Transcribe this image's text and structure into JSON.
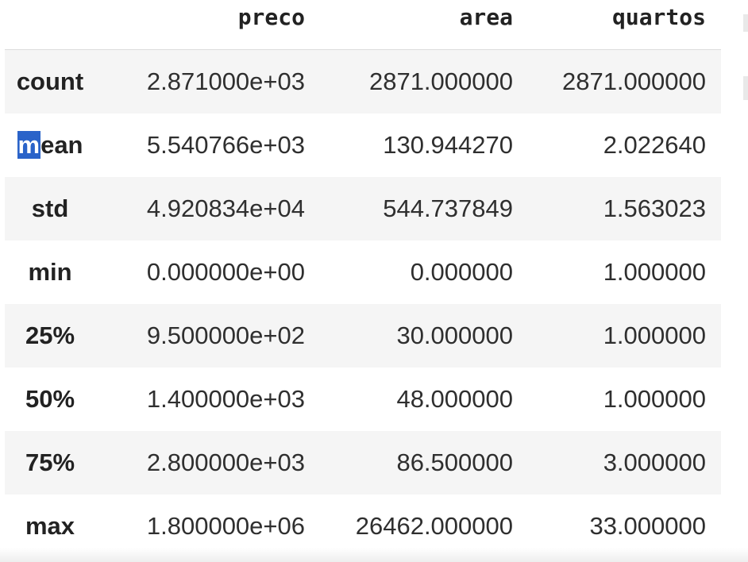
{
  "table": {
    "columns": [
      "preco",
      "area",
      "quartos"
    ],
    "rows": [
      {
        "label": "count",
        "preco": "2.871000e+03",
        "area": "2871.000000",
        "quartos": "2871.000000"
      },
      {
        "label": "mean",
        "preco": "5.540766e+03",
        "area": "130.944270",
        "quartos": "2.022640"
      },
      {
        "label": "std",
        "preco": "4.920834e+04",
        "area": "544.737849",
        "quartos": "1.563023"
      },
      {
        "label": "min",
        "preco": "0.000000e+00",
        "area": "0.000000",
        "quartos": "1.000000"
      },
      {
        "label": "25%",
        "preco": "9.500000e+02",
        "area": "30.000000",
        "quartos": "1.000000"
      },
      {
        "label": "50%",
        "preco": "1.400000e+03",
        "area": "48.000000",
        "quartos": "1.000000"
      },
      {
        "label": "75%",
        "preco": "2.800000e+03",
        "area": "86.500000",
        "quartos": "3.000000"
      },
      {
        "label": "max",
        "preco": "1.800000e+06",
        "area": "26462.000000",
        "quartos": "33.000000"
      }
    ],
    "selection": {
      "row_label": "mean",
      "selected_text": "m",
      "rest_text": "ean"
    }
  },
  "colors": {
    "selection_highlight": "#2a63c9",
    "stripe": "#f5f5f5",
    "text": "#222222"
  }
}
